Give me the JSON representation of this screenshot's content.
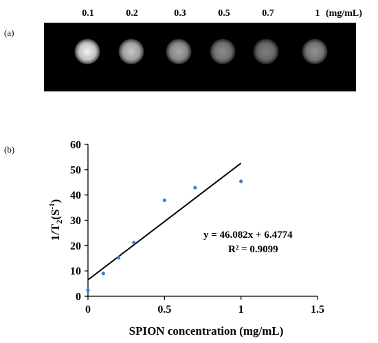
{
  "panel_a": {
    "label": "(a)",
    "concentrations": [
      "0.1",
      "0.2",
      "0.3",
      "0.5",
      "0.7",
      "1"
    ],
    "unit": "(mg/mL)",
    "spot_brightness": [
      0.95,
      0.78,
      0.66,
      0.55,
      0.5,
      0.57
    ]
  },
  "chart_data": {
    "type": "scatter",
    "panel_label": "(b)",
    "xlabel": "SPION concentration (mg/mL)",
    "ylabel_main": "1/T",
    "ylabel_sub": "2",
    "ylabel_paren": "(S",
    "ylabel_sup": "-1",
    "ylabel_close": ")",
    "xlim": [
      0,
      1.5
    ],
    "ylim": [
      0,
      60
    ],
    "xticks": [
      0,
      0.5,
      1,
      1.5
    ],
    "xtick_labels": [
      "0",
      "0.5",
      "1",
      "1.5"
    ],
    "yticks": [
      0,
      10,
      20,
      30,
      40,
      50,
      60
    ],
    "ytick_labels": [
      "0",
      "10",
      "20",
      "30",
      "40",
      "50",
      "60"
    ],
    "series": [
      {
        "x": [
          0,
          0.1,
          0.2,
          0.3,
          0.5,
          0.7,
          1.0
        ],
        "y": [
          2.4,
          9.0,
          15.2,
          21.2,
          37.9,
          42.9,
          45.4
        ],
        "color": "#3a7fd0"
      }
    ],
    "trendline": {
      "slope": 46.082,
      "intercept": 6.4774,
      "x_range": [
        0,
        1.0
      ],
      "equation": "y = 46.082x + 6.4774",
      "r2": "R² = 0.9099"
    }
  }
}
